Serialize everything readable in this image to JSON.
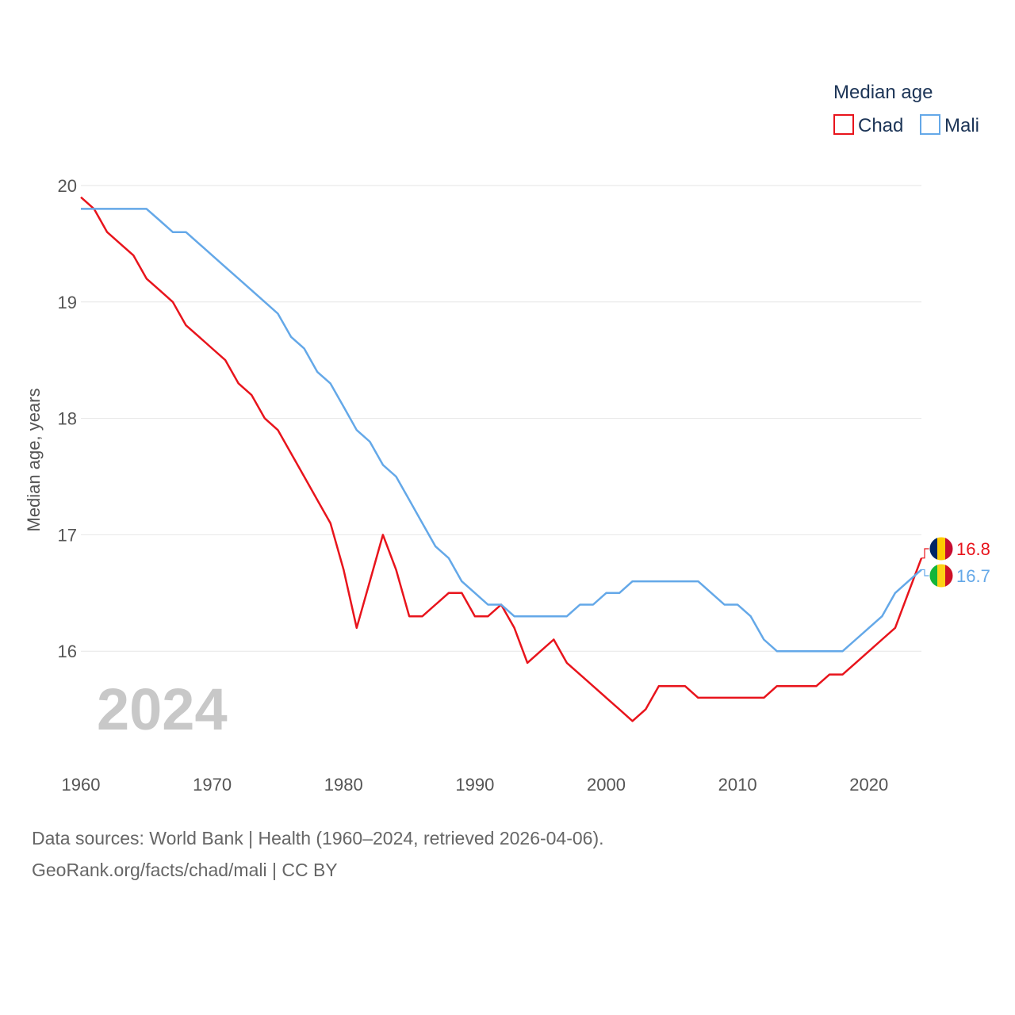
{
  "chart_data": {
    "type": "line",
    "legend_title": "Median age",
    "ylabel": "Median age, years",
    "ylim": [
      15,
      20
    ],
    "yticks": [
      16,
      17,
      18,
      19,
      20
    ],
    "xlim": [
      1960,
      2024
    ],
    "xticks": [
      1960,
      1970,
      1980,
      1990,
      2000,
      2010,
      2020
    ],
    "year_label": "2024",
    "x": [
      1960,
      1961,
      1962,
      1963,
      1964,
      1965,
      1966,
      1967,
      1968,
      1969,
      1970,
      1971,
      1972,
      1973,
      1974,
      1975,
      1976,
      1977,
      1978,
      1979,
      1980,
      1981,
      1982,
      1983,
      1984,
      1985,
      1986,
      1987,
      1988,
      1989,
      1990,
      1991,
      1992,
      1993,
      1994,
      1995,
      1996,
      1997,
      1998,
      1999,
      2000,
      2001,
      2002,
      2003,
      2004,
      2005,
      2006,
      2007,
      2008,
      2009,
      2010,
      2011,
      2012,
      2013,
      2014,
      2015,
      2016,
      2017,
      2018,
      2019,
      2020,
      2021,
      2022,
      2023,
      2024
    ],
    "series": [
      {
        "name": "Chad",
        "color": "#e8141c",
        "end_value_label": "16.8",
        "values": [
          19.9,
          19.8,
          19.6,
          19.5,
          19.4,
          19.2,
          19.1,
          19.0,
          18.8,
          18.7,
          18.6,
          18.5,
          18.3,
          18.2,
          18.0,
          17.9,
          17.7,
          17.5,
          17.3,
          17.1,
          16.7,
          16.2,
          16.6,
          17.0,
          16.7,
          16.3,
          16.3,
          16.4,
          16.5,
          16.5,
          16.3,
          16.3,
          16.4,
          16.2,
          15.9,
          16.0,
          16.1,
          15.9,
          15.8,
          15.7,
          15.6,
          15.5,
          15.4,
          15.5,
          15.7,
          15.7,
          15.7,
          15.6,
          15.6,
          15.6,
          15.6,
          15.6,
          15.6,
          15.7,
          15.7,
          15.7,
          15.7,
          15.8,
          15.8,
          15.9,
          16.0,
          16.1,
          16.2,
          16.5,
          16.8
        ]
      },
      {
        "name": "Mali",
        "color": "#64a8e8",
        "end_value_label": "16.7",
        "values": [
          19.8,
          19.8,
          19.8,
          19.8,
          19.8,
          19.8,
          19.7,
          19.6,
          19.6,
          19.5,
          19.4,
          19.3,
          19.2,
          19.1,
          19.0,
          18.9,
          18.7,
          18.6,
          18.4,
          18.3,
          18.1,
          17.9,
          17.8,
          17.6,
          17.5,
          17.3,
          17.1,
          16.9,
          16.8,
          16.6,
          16.5,
          16.4,
          16.4,
          16.3,
          16.3,
          16.3,
          16.3,
          16.3,
          16.4,
          16.4,
          16.5,
          16.5,
          16.6,
          16.6,
          16.6,
          16.6,
          16.6,
          16.6,
          16.5,
          16.4,
          16.4,
          16.3,
          16.1,
          16.0,
          16.0,
          16.0,
          16.0,
          16.0,
          16.0,
          16.1,
          16.2,
          16.3,
          16.5,
          16.6,
          16.7
        ]
      }
    ]
  },
  "source": {
    "line1": "Data sources: World Bank | Health (1960–2024, retrieved 2026-04-06).",
    "line2": "GeoRank.org/facts/chad/mali | CC BY"
  },
  "flags": {
    "chad": [
      "#002664",
      "#fecb00",
      "#c60c30"
    ],
    "mali": [
      "#14b53a",
      "#fcd116",
      "#ce1126"
    ]
  }
}
